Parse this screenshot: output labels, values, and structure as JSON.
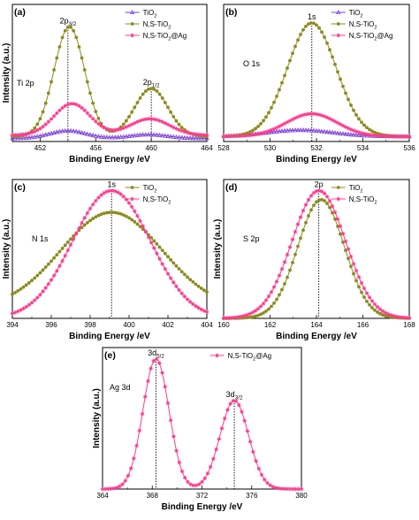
{
  "chart_data": [
    {
      "type": "line",
      "panel_label": "(a)",
      "annotation": "Ti 2p",
      "xlabel": "Binding Energy /eV",
      "ylabel": "Intensity (a.u.)",
      "xlim": [
        450,
        464
      ],
      "ylim": [
        0,
        1
      ],
      "xticks": [
        452,
        456,
        460,
        464
      ],
      "legend": "top-right",
      "peak_labels": [
        {
          "main": "2p",
          "sub": "3/2",
          "x": 454
        },
        {
          "main": "2p",
          "sub": "1/2",
          "x": 460
        }
      ],
      "series": [
        {
          "name": "TiO",
          "sub": "2",
          "color": "#7b3fd9",
          "marker": "triangle",
          "peaks": [
            {
              "center": 454,
              "height": 0.06,
              "width": 1.3
            },
            {
              "center": 459.8,
              "height": 0.03,
              "width": 1.3
            }
          ],
          "base": 0.025
        },
        {
          "name": "N,S-TiO",
          "sub": "2",
          "color": "#8b8b1e",
          "marker": "circle",
          "peaks": [
            {
              "center": 454.1,
              "height": 0.87,
              "width": 1.1
            },
            {
              "center": 460,
              "height": 0.38,
              "width": 1.2
            }
          ],
          "base": 0.04
        },
        {
          "name": "N,S-TiO",
          "sub": "2",
          "suffix": "@Ag",
          "color": "#ff3b8d",
          "marker": "star",
          "peaks": [
            {
              "center": 454.3,
              "height": 0.25,
              "width": 1.3
            },
            {
              "center": 459.9,
              "height": 0.13,
              "width": 1.4
            }
          ],
          "base": 0.05
        }
      ]
    },
    {
      "type": "line",
      "panel_label": "(b)",
      "annotation": "O 1s",
      "xlabel": "Binding Energy /eV",
      "ylabel": "",
      "xlim": [
        528,
        536
      ],
      "ylim": [
        0,
        1
      ],
      "xticks": [
        528,
        530,
        532,
        534,
        536
      ],
      "legend": "top-right",
      "peak_labels": [
        {
          "main": "1s",
          "sub": "",
          "x": 531.8
        }
      ],
      "series": [
        {
          "name": "TiO",
          "sub": "2",
          "color": "#7b3fd9",
          "marker": "triangle",
          "peaks": [
            {
              "center": 531.3,
              "height": 0.05,
              "width": 1.4
            }
          ],
          "base": 0.04
        },
        {
          "name": "N,S-TiO",
          "sub": "2",
          "color": "#8b8b1e",
          "marker": "circle",
          "peaks": [
            {
              "center": 531.8,
              "height": 0.9,
              "width": 1.05
            }
          ],
          "base": 0.04
        },
        {
          "name": "N,S-TiO",
          "sub": "2",
          "suffix": "@Ag",
          "color": "#ff3b8d",
          "marker": "star",
          "peaks": [
            {
              "center": 531.8,
              "height": 0.18,
              "width": 1.1
            }
          ],
          "base": 0.04
        }
      ]
    },
    {
      "type": "line",
      "panel_label": "(c)",
      "annotation": "N 1s",
      "xlabel": "Binding Energy /eV",
      "ylabel": "Intensity (a.u.)",
      "xlim": [
        394,
        404
      ],
      "ylim": [
        0,
        1
      ],
      "xticks": [
        394,
        396,
        398,
        400,
        402,
        404
      ],
      "legend": "top-right",
      "peak_labels": [
        {
          "main": "1s",
          "sub": "",
          "x": 399.1
        }
      ],
      "series": [
        {
          "name": "TiO",
          "sub": "2",
          "color": "#8b8b1e",
          "marker": "circle",
          "peaks": [
            {
              "center": 399.1,
              "height": 0.75,
              "width": 2.6
            }
          ],
          "base": 0.08
        },
        {
          "name": "N,S-TiO",
          "sub": "2",
          "color": "#ff3b8d",
          "marker": "star",
          "peaks": [
            {
              "center": 399.1,
              "height": 1.0,
              "width": 2.0
            }
          ],
          "base": 0.0
        }
      ]
    },
    {
      "type": "line",
      "panel_label": "(d)",
      "annotation": "S 2p",
      "xlabel": "Binding Energy /eV",
      "ylabel": "Intensity (a.u.)",
      "xlim": [
        160,
        168
      ],
      "ylim": [
        0,
        1
      ],
      "xticks": [
        160,
        162,
        164,
        166,
        168
      ],
      "legend": "top-right",
      "peak_labels": [
        {
          "main": "2p",
          "sub": "",
          "x": 164.1
        }
      ],
      "series": [
        {
          "name": "TiO",
          "sub": "2",
          "color": "#8b8b1e",
          "marker": "circle",
          "peaks": [
            {
              "center": 164.2,
              "height": 0.93,
              "width": 1.0
            }
          ],
          "base": 0.0
        },
        {
          "name": "N,S-TiO",
          "sub": "2",
          "color": "#ff3b8d",
          "marker": "star",
          "peaks": [
            {
              "center": 164.1,
              "height": 1.0,
              "width": 1.15
            }
          ],
          "base": 0.0
        }
      ]
    },
    {
      "type": "line",
      "panel_label": "(e)",
      "annotation": "Ag 3d",
      "xlabel": "Binding Energy /eV",
      "ylabel": "Intensity (a.u.)",
      "xlim": [
        364,
        380
      ],
      "ylim": [
        0,
        1
      ],
      "xticks": [
        364,
        368,
        372,
        376,
        380
      ],
      "legend": "top-right",
      "peak_labels": [
        {
          "main": "3d",
          "sub": "5/2",
          "x": 368.3
        },
        {
          "main": "3d",
          "sub": "3/2",
          "x": 374.6
        }
      ],
      "series": [
        {
          "name": "N,S-TiO",
          "sub": "2",
          "suffix": "@Ag",
          "color": "#ff3b8d",
          "marker": "star",
          "peaks": [
            {
              "center": 368.3,
              "height": 1.0,
              "width": 1.05
            },
            {
              "center": 374.6,
              "height": 0.68,
              "width": 1.15
            }
          ],
          "base": 0.0
        }
      ]
    }
  ]
}
